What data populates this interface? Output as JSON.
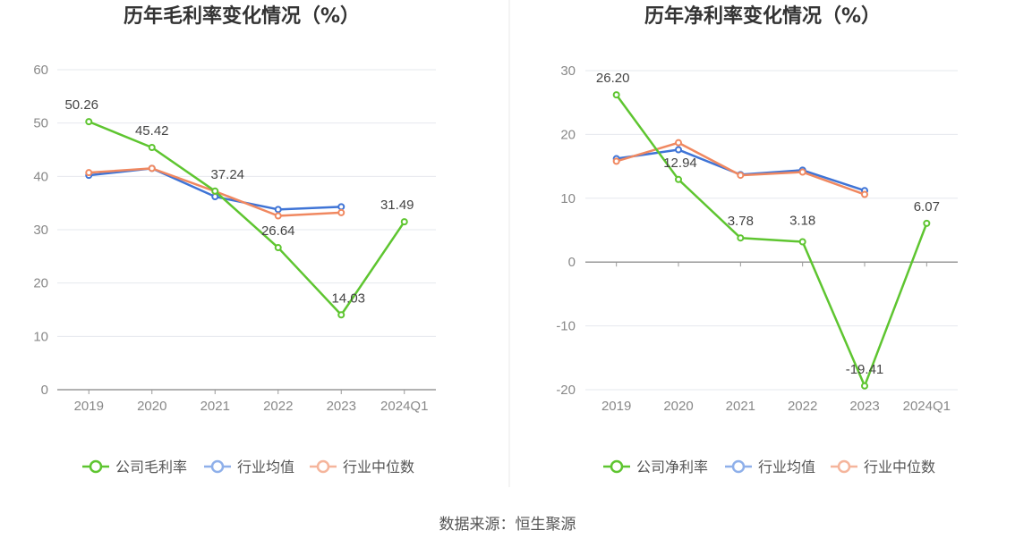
{
  "source_text": "数据来源：恒生聚源",
  "chart_data": [
    {
      "type": "line",
      "title": "历年毛利率变化情况（%）",
      "categories": [
        "2019",
        "2020",
        "2021",
        "2022",
        "2023",
        "2024Q1"
      ],
      "ylim": [
        0,
        60
      ],
      "yticks": [
        "0",
        "10",
        "20",
        "30",
        "40",
        "50",
        "60"
      ],
      "grid": true,
      "legend_position": "bottom-center",
      "series": [
        {
          "name": "公司毛利率",
          "color": "#5ec530",
          "values": [
            50.26,
            45.42,
            37.24,
            26.64,
            14.03,
            31.49
          ],
          "labels": [
            "50.26",
            "45.42",
            "37.24",
            "26.64",
            "14.03",
            "31.49"
          ]
        },
        {
          "name": "行业均值",
          "color": "#3f74d6",
          "values": [
            40.2,
            41.5,
            36.2,
            33.8,
            34.3,
            null
          ]
        },
        {
          "name": "行业中位数",
          "color": "#f08860",
          "values": [
            40.7,
            41.5,
            37.2,
            32.6,
            33.2,
            null
          ]
        }
      ]
    },
    {
      "type": "line",
      "title": "历年净利率变化情况（%）",
      "categories": [
        "2019",
        "2020",
        "2021",
        "2022",
        "2023",
        "2024Q1"
      ],
      "ylim": [
        -20,
        30
      ],
      "yticks": [
        "-20",
        "-10",
        "0",
        "10",
        "20",
        "30"
      ],
      "grid": true,
      "legend_position": "bottom-center",
      "series": [
        {
          "name": "公司净利率",
          "color": "#5ec530",
          "values": [
            26.2,
            12.94,
            3.78,
            3.18,
            -19.41,
            6.07
          ],
          "labels": [
            "26.20",
            "12.94",
            "3.78",
            "3.18",
            "-19.41",
            "6.07"
          ]
        },
        {
          "name": "行业均值",
          "color": "#3f74d6",
          "values": [
            16.2,
            17.6,
            13.7,
            14.4,
            11.2,
            null
          ]
        },
        {
          "name": "行业中位数",
          "color": "#f08860",
          "values": [
            15.8,
            18.7,
            13.6,
            14.1,
            10.6,
            null
          ]
        }
      ]
    }
  ]
}
